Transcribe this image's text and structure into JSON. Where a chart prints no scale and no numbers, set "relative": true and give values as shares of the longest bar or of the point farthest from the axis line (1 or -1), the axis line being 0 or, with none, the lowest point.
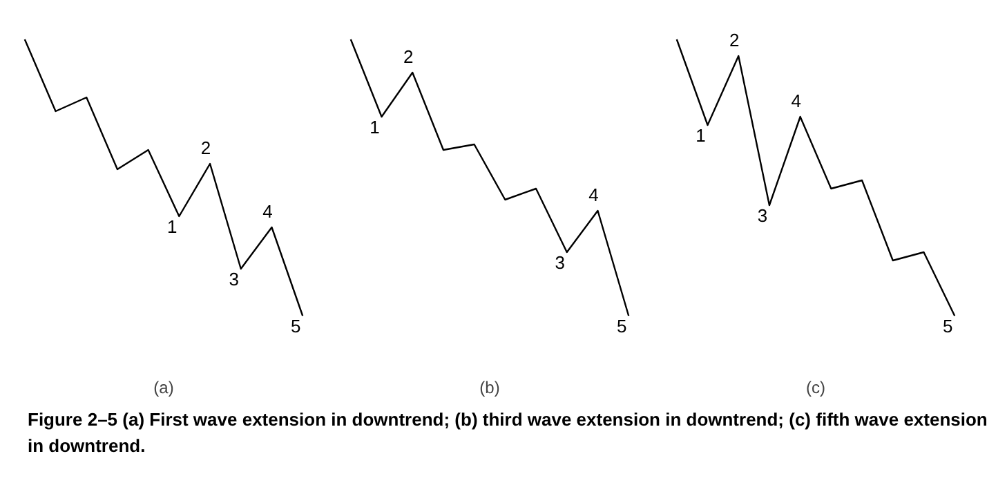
{
  "chart_data": [
    {
      "type": "line",
      "xlabel": "(a)",
      "relative": true,
      "categories": [
        null,
        null,
        null,
        null,
        null,
        null,
        null,
        null,
        null,
        null
      ],
      "series": [
        {
          "color": "#000000",
          "values": [
            1.0,
            0.74,
            0.79,
            0.53,
            0.6,
            0.36,
            0.55,
            0.17,
            0.32,
            0.0
          ]
        }
      ],
      "annotations": [
        {
          "text": "1",
          "y": 0.36
        },
        {
          "text": "2",
          "y": 0.55
        },
        {
          "text": "3",
          "y": 0.17
        },
        {
          "text": "4",
          "y": 0.32
        },
        {
          "text": "5",
          "y": 0.0
        },
        "Figure 2–5   (a) First wave extension in downtrend; (b) third wave extension in downtrend; (c) fifth wave extension in downtrend."
      ]
    },
    {
      "type": "line",
      "xlabel": "(b)",
      "relative": true,
      "categories": [
        null,
        null,
        null,
        null,
        null,
        null,
        null,
        null,
        null,
        null
      ],
      "series": [
        {
          "color": "#000000",
          "values": [
            1.0,
            0.72,
            0.88,
            0.6,
            0.62,
            0.42,
            0.46,
            0.23,
            0.38,
            0.0
          ]
        }
      ],
      "annotations": [
        {
          "text": "1",
          "y": 0.72
        },
        {
          "text": "2",
          "y": 0.88
        },
        {
          "text": "3",
          "y": 0.23
        },
        {
          "text": "4",
          "y": 0.38
        },
        {
          "text": "5",
          "y": 0.0
        }
      ]
    },
    {
      "type": "line",
      "xlabel": "(c)",
      "relative": true,
      "categories": [
        null,
        null,
        null,
        null,
        null,
        null,
        null,
        null,
        null,
        null
      ],
      "series": [
        {
          "color": "#000000",
          "values": [
            1.0,
            0.69,
            0.94,
            0.4,
            0.72,
            0.46,
            0.49,
            0.2,
            0.23,
            0.0
          ]
        }
      ],
      "annotations": [
        {
          "text": "1",
          "y": 0.69
        },
        {
          "text": "2",
          "y": 0.94
        },
        {
          "text": "3",
          "y": 0.4
        },
        {
          "text": "4",
          "y": 0.72
        },
        {
          "text": "5",
          "y": 0.0
        }
      ]
    }
  ]
}
